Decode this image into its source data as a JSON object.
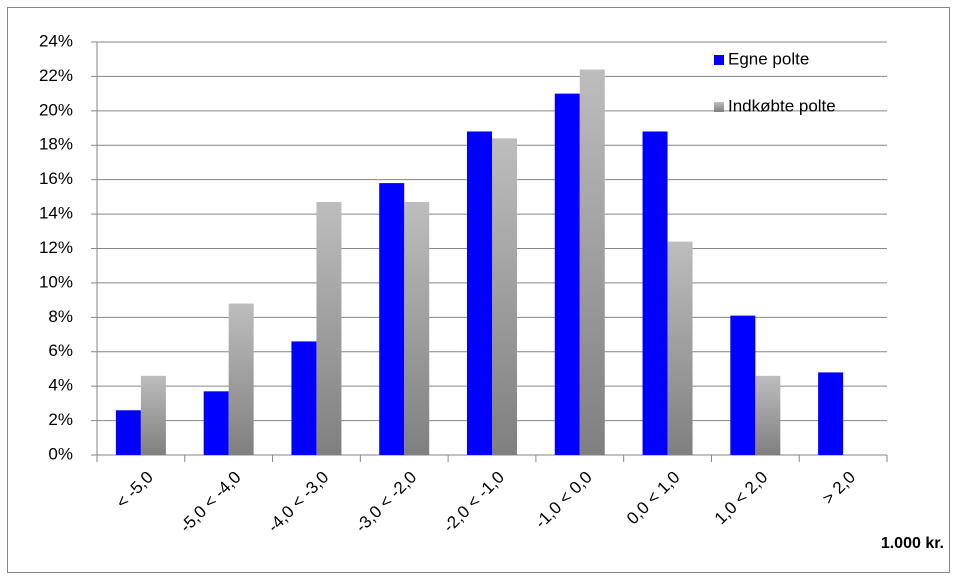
{
  "chart_data": {
    "type": "bar",
    "categories": [
      "< -5,0",
      "-5,0 < -4,0",
      "-4,0 < -3,0",
      "-3,0 < -2,0",
      "-2,0 < -1,0",
      "-1,0 < 0,0",
      "0,0 < 1,0",
      "1,0 < 2,0",
      "> 2,0"
    ],
    "series": [
      {
        "name": "Egne polte",
        "color": "#0000ff",
        "values": [
          2.6,
          3.7,
          6.6,
          15.8,
          18.8,
          21.0,
          18.8,
          8.1,
          4.8
        ]
      },
      {
        "name": "Indkøbte polte",
        "color": "#a6a6a6",
        "values": [
          4.6,
          8.8,
          14.7,
          14.7,
          18.4,
          22.4,
          12.4,
          4.6,
          null
        ]
      }
    ],
    "x_label": "1.000 kr.",
    "ylim": [
      0,
      24
    ],
    "yticks": [
      {
        "value": 0,
        "label": "0%"
      },
      {
        "value": 2,
        "label": "2%"
      },
      {
        "value": 4,
        "label": "4%"
      },
      {
        "value": 6,
        "label": "6%"
      },
      {
        "value": 8,
        "label": "8%"
      },
      {
        "value": 10,
        "label": "10%"
      },
      {
        "value": 12,
        "label": "12%"
      },
      {
        "value": 14,
        "label": "14%"
      },
      {
        "value": 16,
        "label": "16%"
      },
      {
        "value": 18,
        "label": "18%"
      },
      {
        "value": 20,
        "label": "20%"
      },
      {
        "value": 22,
        "label": "22%"
      },
      {
        "value": 24,
        "label": "24%"
      }
    ],
    "grid": true,
    "legend": "top-right"
  }
}
